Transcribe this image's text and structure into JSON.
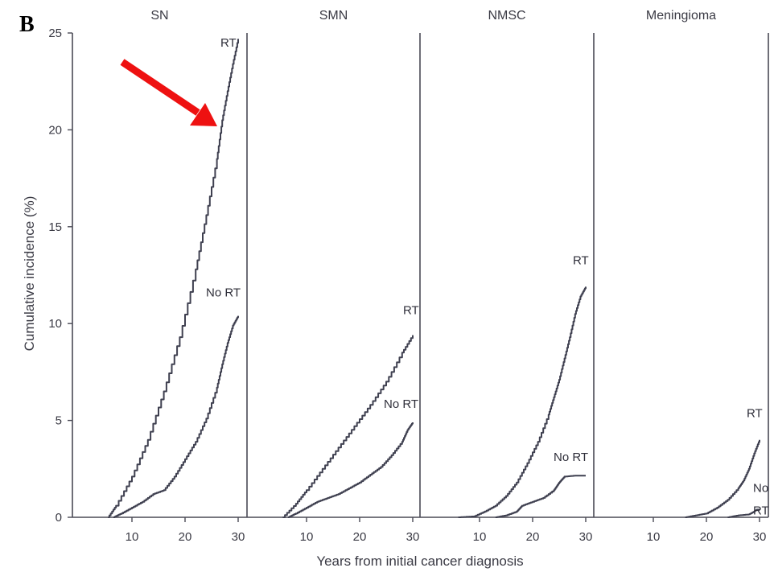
{
  "figure_label": "B",
  "colors": {
    "axis": "#4a4a55",
    "curve": "#3f4050",
    "arrow": "#ee1111"
  },
  "chart_data": [
    {
      "type": "line",
      "title": "SN",
      "ylabel": "Cumulative incidence (%)",
      "xlabel": "Years from initial cancer diagnosis",
      "xlim": [
        0,
        32
      ],
      "ylim": [
        0,
        25
      ],
      "xticks": [
        10,
        20,
        30
      ],
      "yticks": [
        0,
        5,
        10,
        15,
        20,
        25
      ],
      "grid": false,
      "series": [
        {
          "name": "RT",
          "x": [
            5.5,
            7,
            10,
            13,
            16,
            19,
            22,
            24,
            26,
            27,
            28,
            29,
            30
          ],
          "y": [
            0,
            0.6,
            2.1,
            4.0,
            6.5,
            9.3,
            12.8,
            15.6,
            18.5,
            20.5,
            22.0,
            23.4,
            24.7
          ]
        },
        {
          "name": "No RT",
          "x": [
            6.5,
            8,
            10,
            12,
            14,
            16,
            18,
            20,
            22,
            24,
            26,
            27,
            28,
            29,
            30
          ],
          "y": [
            0,
            0.2,
            0.5,
            0.8,
            1.2,
            1.4,
            2.1,
            3.0,
            3.9,
            5.1,
            6.7,
            7.9,
            9.0,
            9.9,
            10.4
          ]
        }
      ]
    },
    {
      "type": "line",
      "title": "SMN",
      "xlim": [
        0,
        32
      ],
      "ylim": [
        0,
        25
      ],
      "xticks": [
        10,
        20,
        30
      ],
      "grid": false,
      "series": [
        {
          "name": "RT",
          "x": [
            5.5,
            8,
            10,
            13,
            16,
            19,
            22,
            25,
            28,
            30
          ],
          "y": [
            0,
            0.7,
            1.4,
            2.5,
            3.6,
            4.7,
            5.8,
            7.0,
            8.5,
            9.4
          ]
        },
        {
          "name": "No RT",
          "x": [
            6.5,
            8,
            10,
            12,
            14,
            16,
            18,
            20,
            22,
            24,
            26,
            28,
            29,
            30
          ],
          "y": [
            0,
            0.2,
            0.5,
            0.8,
            1.0,
            1.2,
            1.5,
            1.8,
            2.2,
            2.6,
            3.2,
            3.9,
            4.5,
            4.9
          ]
        }
      ]
    },
    {
      "type": "line",
      "title": "NMSC",
      "xlim": [
        0,
        32
      ],
      "ylim": [
        0,
        25
      ],
      "xticks": [
        10,
        20,
        30
      ],
      "grid": false,
      "series": [
        {
          "name": "RT",
          "x": [
            6,
            9,
            11,
            13,
            15,
            17,
            19,
            21,
            23,
            24,
            25,
            26,
            27,
            28,
            29,
            30
          ],
          "y": [
            0,
            0.05,
            0.3,
            0.6,
            1.1,
            1.8,
            2.8,
            3.9,
            5.3,
            6.2,
            7.1,
            8.2,
            9.3,
            10.5,
            11.4,
            11.9
          ]
        },
        {
          "name": "No RT",
          "x": [
            13,
            15,
            17,
            18,
            20,
            22,
            24,
            25,
            26,
            28,
            30
          ],
          "y": [
            0,
            0.1,
            0.3,
            0.6,
            0.8,
            1.0,
            1.4,
            1.8,
            2.1,
            2.15,
            2.15
          ]
        }
      ]
    },
    {
      "type": "line",
      "title": "Meningioma",
      "xlim": [
        0,
        32
      ],
      "ylim": [
        0,
        25
      ],
      "xticks": [
        10,
        20,
        30
      ],
      "grid": false,
      "series": [
        {
          "name": "RT",
          "x": [
            16,
            18,
            20,
            22,
            24,
            26,
            27,
            28,
            29,
            30
          ],
          "y": [
            0,
            0.1,
            0.2,
            0.5,
            0.9,
            1.5,
            1.9,
            2.5,
            3.3,
            4.0
          ]
        },
        {
          "name": "No RT",
          "x": [
            24,
            26,
            28,
            29,
            29.5,
            30
          ],
          "y": [
            0,
            0.1,
            0.15,
            0.3,
            0.4,
            0.4
          ]
        }
      ]
    }
  ],
  "curve_labels": [
    {
      "panel": 0,
      "series": 0,
      "lines": [
        "RT"
      ]
    },
    {
      "panel": 0,
      "series": 1,
      "lines": [
        "No RT"
      ]
    },
    {
      "panel": 1,
      "series": 0,
      "lines": [
        "RT"
      ]
    },
    {
      "panel": 1,
      "series": 1,
      "lines": [
        "No RT"
      ]
    },
    {
      "panel": 2,
      "series": 0,
      "lines": [
        "RT"
      ]
    },
    {
      "panel": 2,
      "series": 1,
      "lines": [
        "No RT"
      ]
    },
    {
      "panel": 3,
      "series": 0,
      "lines": [
        "RT"
      ]
    },
    {
      "panel": 3,
      "series": 1,
      "lines": [
        "No",
        "RT"
      ]
    }
  ]
}
